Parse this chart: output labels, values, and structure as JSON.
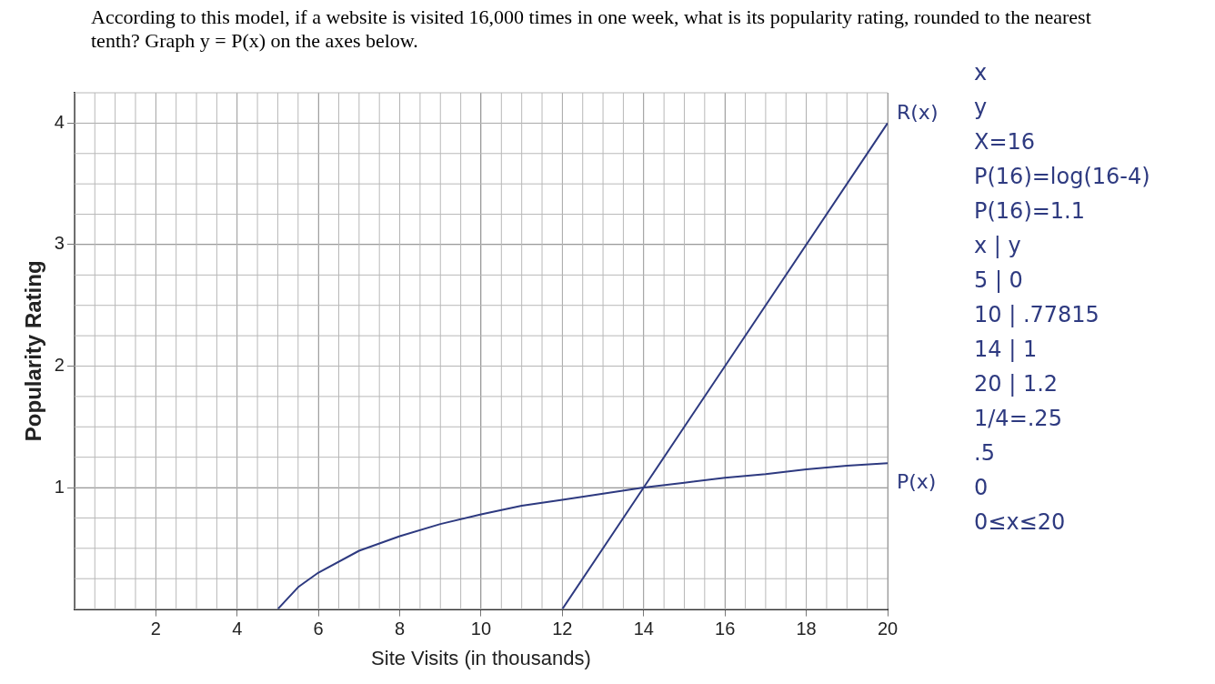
{
  "chart_data": {
    "type": "line",
    "title": "According to this model, if a website is visited 16,000 times in one week, what is its popularity rating, rounded to the nearest tenth?  Graph y = P(x) on the axes below.",
    "xlabel": "Site Visits (in thousands)",
    "ylabel": "Popularity Rating",
    "x": [
      5,
      5.5,
      6,
      7,
      8,
      9,
      10,
      11,
      12,
      13,
      14,
      15,
      16,
      17,
      18,
      19,
      20
    ],
    "series": [
      {
        "name": "P(x)",
        "color": "#2e3a80",
        "values": [
          0,
          0.18,
          0.3,
          0.48,
          0.6,
          0.7,
          0.78,
          0.85,
          0.9,
          0.95,
          1,
          1.04,
          1.08,
          1.11,
          1.15,
          1.18,
          1.2
        ]
      },
      {
        "name": "R(x)",
        "color": "#2e3a80",
        "x": [
          12,
          14,
          16,
          20
        ],
        "values": [
          0,
          1,
          2,
          4
        ]
      }
    ],
    "xlim": [
      0,
      20
    ],
    "ylim": [
      0,
      4.25
    ],
    "xticks": [
      2,
      4,
      6,
      8,
      10,
      12,
      14,
      16,
      18,
      20
    ],
    "yticks": [
      1,
      2,
      3,
      4
    ],
    "grid": true,
    "legend": false,
    "marker": "none",
    "line_style": "solid",
    "annotations": [
      "x",
      "y",
      "X=16",
      "P(16)=log(16-4)",
      "P(16)=1.1",
      "x | y",
      "5 | 0",
      "10 | .77815",
      "14 | 1",
      "20 | 1.2",
      "1/4=.25",
      ".5",
      "0",
      "0≤x≤20"
    ]
  }
}
